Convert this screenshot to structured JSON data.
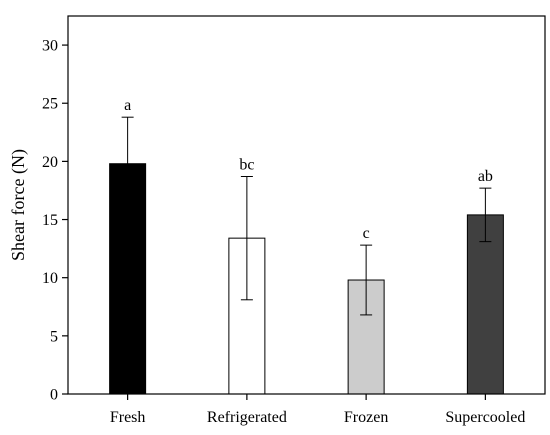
{
  "chart_data": {
    "type": "bar",
    "title": "",
    "xlabel": "",
    "ylabel": "Shear force (N)",
    "ylim": [
      0,
      32.5
    ],
    "yticks": [
      0,
      5,
      10,
      15,
      20,
      25,
      30
    ],
    "grid": false,
    "categories": [
      "Fresh",
      "Refrigerated",
      "Frozen",
      "Supercooled"
    ],
    "values": [
      19.8,
      13.4,
      9.8,
      15.4
    ],
    "errors": [
      4.0,
      5.3,
      3.0,
      2.3
    ],
    "significance": [
      "a",
      "bc",
      "c",
      "ab"
    ],
    "bar_colors": [
      "#000000",
      "#ffffff",
      "#cccccc",
      "#404040"
    ]
  }
}
